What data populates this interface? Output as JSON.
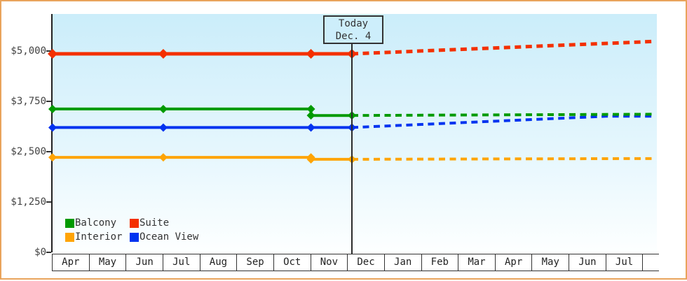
{
  "today_box": {
    "line1": "Today",
    "line2": "Dec. 4"
  },
  "chart_data": {
    "type": "line",
    "title": "",
    "xlabel": "",
    "ylabel": "",
    "y_axis": {
      "tick_labels": [
        "$5,000",
        "$3,750",
        "$2,500",
        "$1,250",
        "$0"
      ],
      "tick_values": [
        5000,
        3750,
        2500,
        1250,
        0
      ],
      "ylim": [
        0,
        5920
      ]
    },
    "x_axis": {
      "months": [
        "Apr",
        "May",
        "Jun",
        "Jul",
        "Aug",
        "Sep",
        "Oct",
        "Nov",
        "Dec",
        "Jan",
        "Feb",
        "Mar",
        "Apr",
        "May",
        "Jun",
        "Jul",
        ""
      ]
    },
    "today": {
      "line1": "Today",
      "line2": "Dec. 4",
      "month_index": 8.11
    },
    "grid": false,
    "legend_position": "bottom-left-inside",
    "series": [
      {
        "name": "Ocean View",
        "color": "#0033f0",
        "history": [
          [
            0,
            3100
          ],
          [
            3,
            3100
          ],
          [
            7,
            3100
          ],
          [
            8.11,
            3100
          ]
        ],
        "markers": [
          [
            0,
            3100
          ],
          [
            3,
            3100
          ],
          [
            7,
            3100
          ],
          [
            8.11,
            3100
          ]
        ],
        "forecast": [
          [
            8.11,
            3100
          ],
          [
            15.0,
            3380
          ],
          [
            16.33,
            3380
          ]
        ]
      },
      {
        "name": "Balcony",
        "color": "#009a00",
        "history": [
          [
            0,
            3560
          ],
          [
            3,
            3560
          ],
          [
            7,
            3560
          ],
          [
            7,
            3400
          ],
          [
            8.11,
            3400
          ]
        ],
        "markers": [
          [
            0,
            3560
          ],
          [
            3,
            3560
          ],
          [
            7,
            3560
          ],
          [
            7,
            3400
          ],
          [
            8.11,
            3400
          ]
        ],
        "forecast": [
          [
            8.11,
            3400
          ],
          [
            16.33,
            3430
          ]
        ]
      },
      {
        "name": "Interior",
        "color": "#ffa405",
        "history": [
          [
            0,
            2360
          ],
          [
            3,
            2360
          ],
          [
            7,
            2360
          ],
          [
            7,
            2310
          ],
          [
            8.11,
            2310
          ]
        ],
        "markers": [
          [
            0,
            2360
          ],
          [
            3,
            2360
          ],
          [
            7,
            2360
          ],
          [
            7,
            2310
          ],
          [
            8.11,
            2310
          ]
        ],
        "forecast": [
          [
            8.11,
            2310
          ],
          [
            16.33,
            2330
          ]
        ]
      },
      {
        "name": "Suite",
        "color": "#f43000",
        "history": [
          [
            0,
            4930
          ],
          [
            3,
            4930
          ],
          [
            7,
            4930
          ],
          [
            8.11,
            4930
          ]
        ],
        "markers": [
          [
            0,
            4930
          ],
          [
            3,
            4930
          ],
          [
            7,
            4930
          ],
          [
            8.11,
            4930
          ]
        ],
        "forecast": [
          [
            8.11,
            4930
          ],
          [
            16.33,
            5240
          ]
        ]
      }
    ],
    "legend": [
      {
        "label": "Balcony",
        "color": "#009a00"
      },
      {
        "label": "Suite",
        "color": "#f43000"
      },
      {
        "label": "Interior",
        "color": "#ffa405"
      },
      {
        "label": "Ocean View",
        "color": "#0033f0"
      }
    ]
  }
}
